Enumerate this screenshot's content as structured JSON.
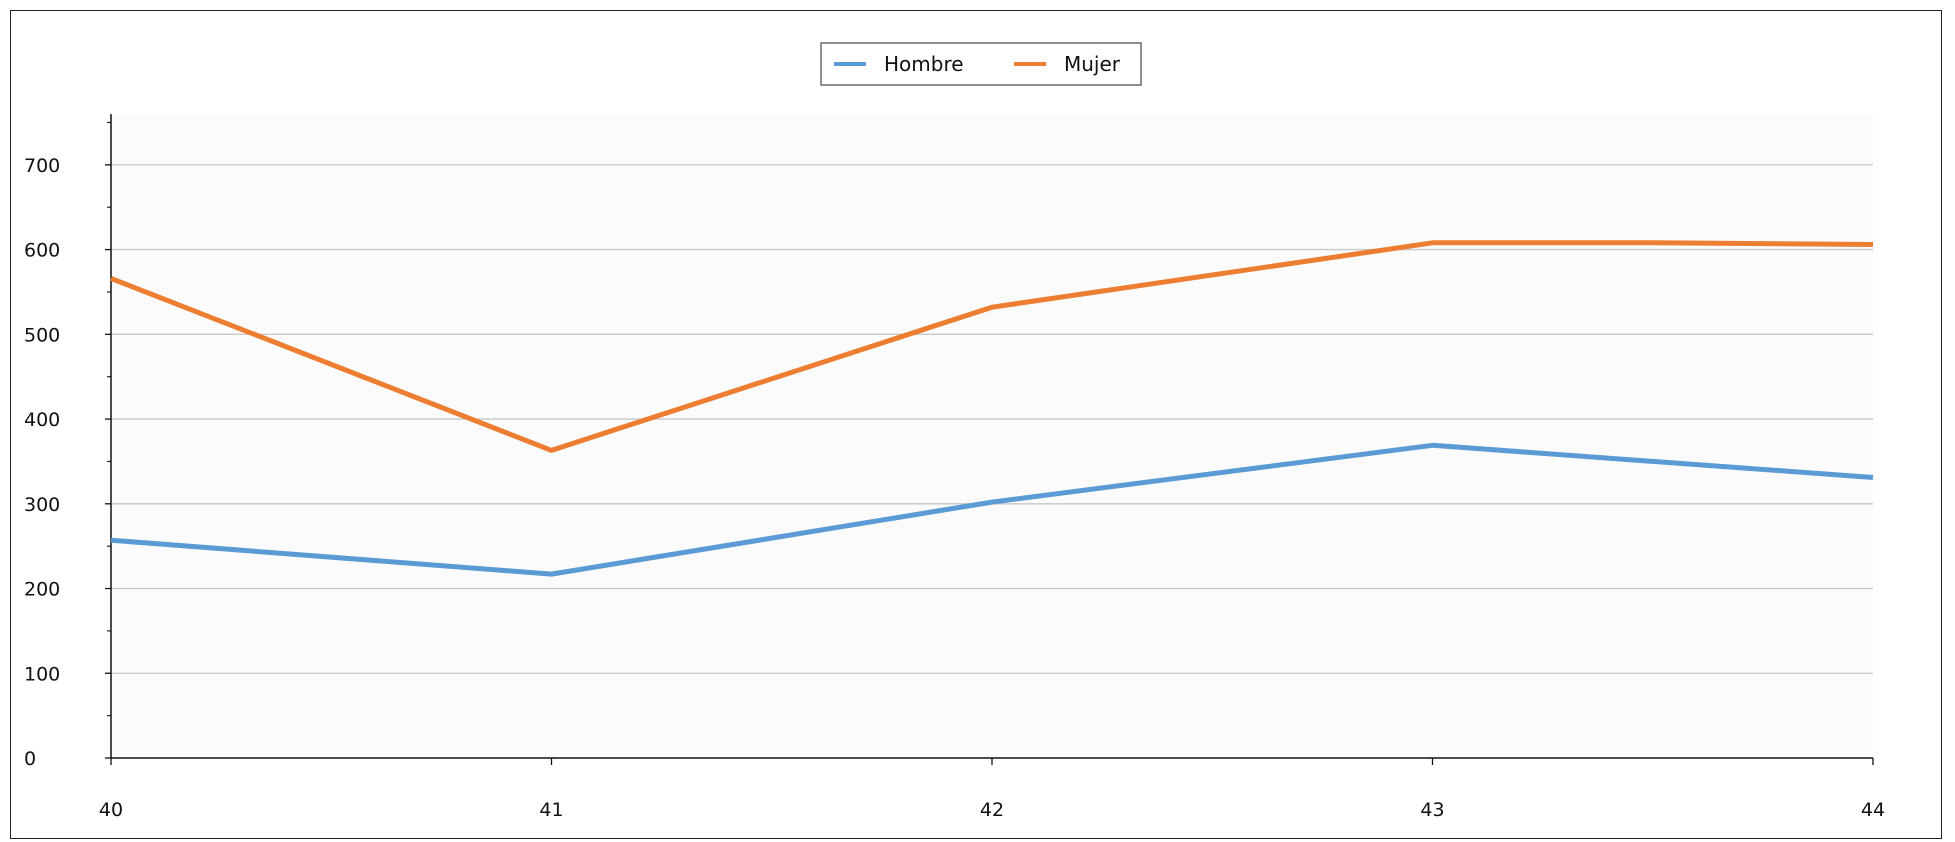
{
  "chart_data": {
    "type": "line",
    "x": [
      40,
      41,
      42,
      43,
      44
    ],
    "x_ticks": [
      "40",
      "41",
      "42",
      "43",
      "44"
    ],
    "y_ticks": [
      "0",
      "100",
      "200",
      "300",
      "400",
      "500",
      "600",
      "700"
    ],
    "xlim": [
      40,
      44
    ],
    "ylim": [
      0,
      760
    ],
    "grid": "horizontal",
    "legend": "top-center",
    "series": [
      {
        "name": "Hombre",
        "color": "#5b9bd5",
        "values": [
          [
            40,
            257
          ],
          [
            41,
            217
          ],
          [
            42,
            302
          ],
          [
            43,
            369
          ],
          [
            43.5,
            350
          ],
          [
            44,
            331
          ]
        ]
      },
      {
        "name": "Mujer",
        "color": "#ed7d31",
        "values": [
          [
            40,
            566
          ],
          [
            41,
            363
          ],
          [
            42,
            532
          ],
          [
            43,
            608
          ],
          [
            43.5,
            608
          ],
          [
            44,
            606
          ]
        ]
      }
    ]
  }
}
